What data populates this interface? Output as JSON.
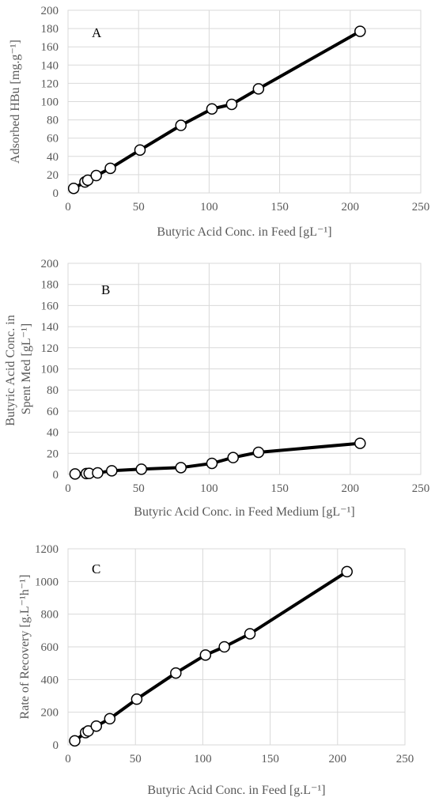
{
  "chart_data": [
    {
      "type": "line",
      "panel_label": "A",
      "xlabel": "Butyric Acid Conc. in Feed [gL⁻¹]",
      "ylabel": "Adsorbed HBu [mg.g⁻¹]",
      "xlim": [
        0,
        250
      ],
      "ylim": [
        0,
        200
      ],
      "xticks": [
        0,
        50,
        100,
        150,
        200,
        250
      ],
      "yticks": [
        0,
        20,
        40,
        60,
        80,
        100,
        120,
        140,
        160,
        180,
        200
      ],
      "grid": true,
      "x": [
        4,
        12,
        14,
        20,
        30,
        51,
        80,
        102,
        116,
        135,
        207
      ],
      "y": [
        5,
        12,
        14,
        19,
        27,
        47,
        74,
        92,
        97,
        114,
        177
      ]
    },
    {
      "type": "line",
      "panel_label": "B",
      "xlabel": "Butyric Acid Conc. in Feed Medium [gL⁻¹]",
      "ylabel_lines": [
        "Butyric Acid Conc. in",
        "Spent Med [gL⁻¹]"
      ],
      "xlim": [
        0,
        250
      ],
      "ylim": [
        0,
        200
      ],
      "xticks": [
        0,
        50,
        100,
        150,
        200,
        250
      ],
      "yticks": [
        0,
        20,
        40,
        60,
        80,
        100,
        120,
        140,
        160,
        180,
        200
      ],
      "grid": true,
      "x": [
        5,
        13,
        15,
        21,
        31,
        52,
        80,
        102,
        117,
        135,
        207
      ],
      "y": [
        0.5,
        0.8,
        1,
        1.5,
        3.5,
        5,
        6.5,
        10.5,
        16,
        21,
        29.5
      ]
    },
    {
      "type": "line",
      "panel_label": "C",
      "xlabel": "Butyric Acid Conc. in Feed [g.L⁻¹]",
      "ylabel": "Rate of Recovery [g.L⁻¹h⁻¹]",
      "xlim": [
        0,
        250
      ],
      "ylim": [
        0,
        1200
      ],
      "xticks": [
        0,
        50,
        100,
        150,
        200,
        250
      ],
      "yticks": [
        0,
        200,
        400,
        600,
        800,
        1000,
        1200
      ],
      "grid": true,
      "x": [
        5,
        13,
        15,
        21,
        31,
        51,
        80,
        102,
        116,
        135,
        207
      ],
      "y": [
        25,
        75,
        85,
        115,
        160,
        280,
        440,
        550,
        600,
        680,
        1060
      ]
    }
  ]
}
